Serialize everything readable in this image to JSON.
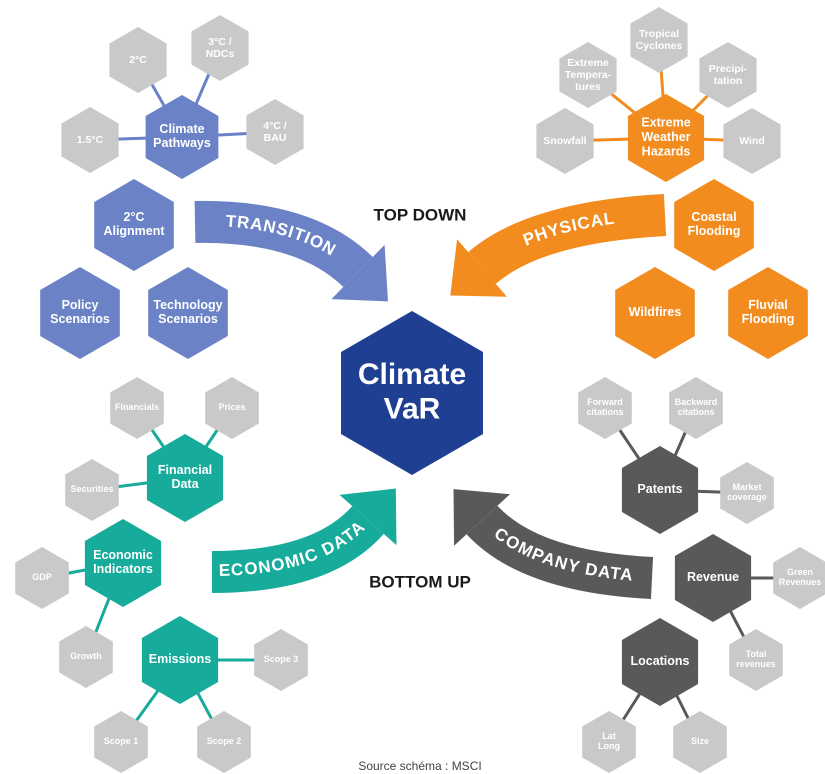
{
  "center": {
    "label": [
      "Climate",
      "VaR"
    ]
  },
  "top_label": "TOP DOWN",
  "bottom_label": "BOTTOM UP",
  "arrows": [
    "TRANSITION",
    "PHYSICAL",
    "ECONOMIC DATA",
    "COMPANY DATA"
  ],
  "caption": "Source schéma : MSCI",
  "nodes": [
    {
      "label": [
        "Climate",
        "Pathways"
      ]
    },
    {
      "label": [
        "2°C"
      ]
    },
    {
      "label": [
        "3°C /",
        "NDCs"
      ]
    },
    {
      "label": [
        "1.5°C"
      ]
    },
    {
      "label": [
        "4°C /",
        "BAU"
      ]
    },
    {
      "label": [
        "2°C",
        "Alignment"
      ]
    },
    {
      "label": [
        "Policy",
        "Scenarios"
      ]
    },
    {
      "label": [
        "Technology",
        "Scenarios"
      ]
    },
    {
      "label": [
        "Extreme",
        "Weather",
        "Hazards"
      ]
    },
    {
      "label": [
        "Extreme",
        "Tempera-",
        "tures"
      ]
    },
    {
      "label": [
        "Tropical",
        "Cyclones"
      ]
    },
    {
      "label": [
        "Precipi-",
        "tation"
      ]
    },
    {
      "label": [
        "Snowfall"
      ]
    },
    {
      "label": [
        "Wind"
      ]
    },
    {
      "label": [
        "Coastal",
        "Flooding"
      ]
    },
    {
      "label": [
        "Wildfires"
      ]
    },
    {
      "label": [
        "Fluvial",
        "Flooding"
      ]
    },
    {
      "label": [
        "Financial",
        "Data"
      ]
    },
    {
      "label": [
        "Financials"
      ]
    },
    {
      "label": [
        "Prices"
      ]
    },
    {
      "label": [
        "Securities"
      ]
    },
    {
      "label": [
        "Economic",
        "Indicators"
      ]
    },
    {
      "label": [
        "GDP"
      ]
    },
    {
      "label": [
        "Growth"
      ]
    },
    {
      "label": [
        "Emissions"
      ]
    },
    {
      "label": [
        "Scope 3"
      ]
    },
    {
      "label": [
        "Scope 1"
      ]
    },
    {
      "label": [
        "Scope 2"
      ]
    },
    {
      "label": [
        "Patents"
      ]
    },
    {
      "label": [
        "Forward",
        "citations"
      ]
    },
    {
      "label": [
        "Backward",
        "citations"
      ]
    },
    {
      "label": [
        "Market",
        "coverage"
      ]
    },
    {
      "label": [
        "Revenue"
      ]
    },
    {
      "label": [
        "Green",
        "Revenues"
      ]
    },
    {
      "label": [
        "Total",
        "revenues"
      ]
    },
    {
      "label": [
        "Locations"
      ]
    },
    {
      "label": [
        "Lat",
        "Long"
      ]
    },
    {
      "label": [
        "Size"
      ]
    }
  ]
}
